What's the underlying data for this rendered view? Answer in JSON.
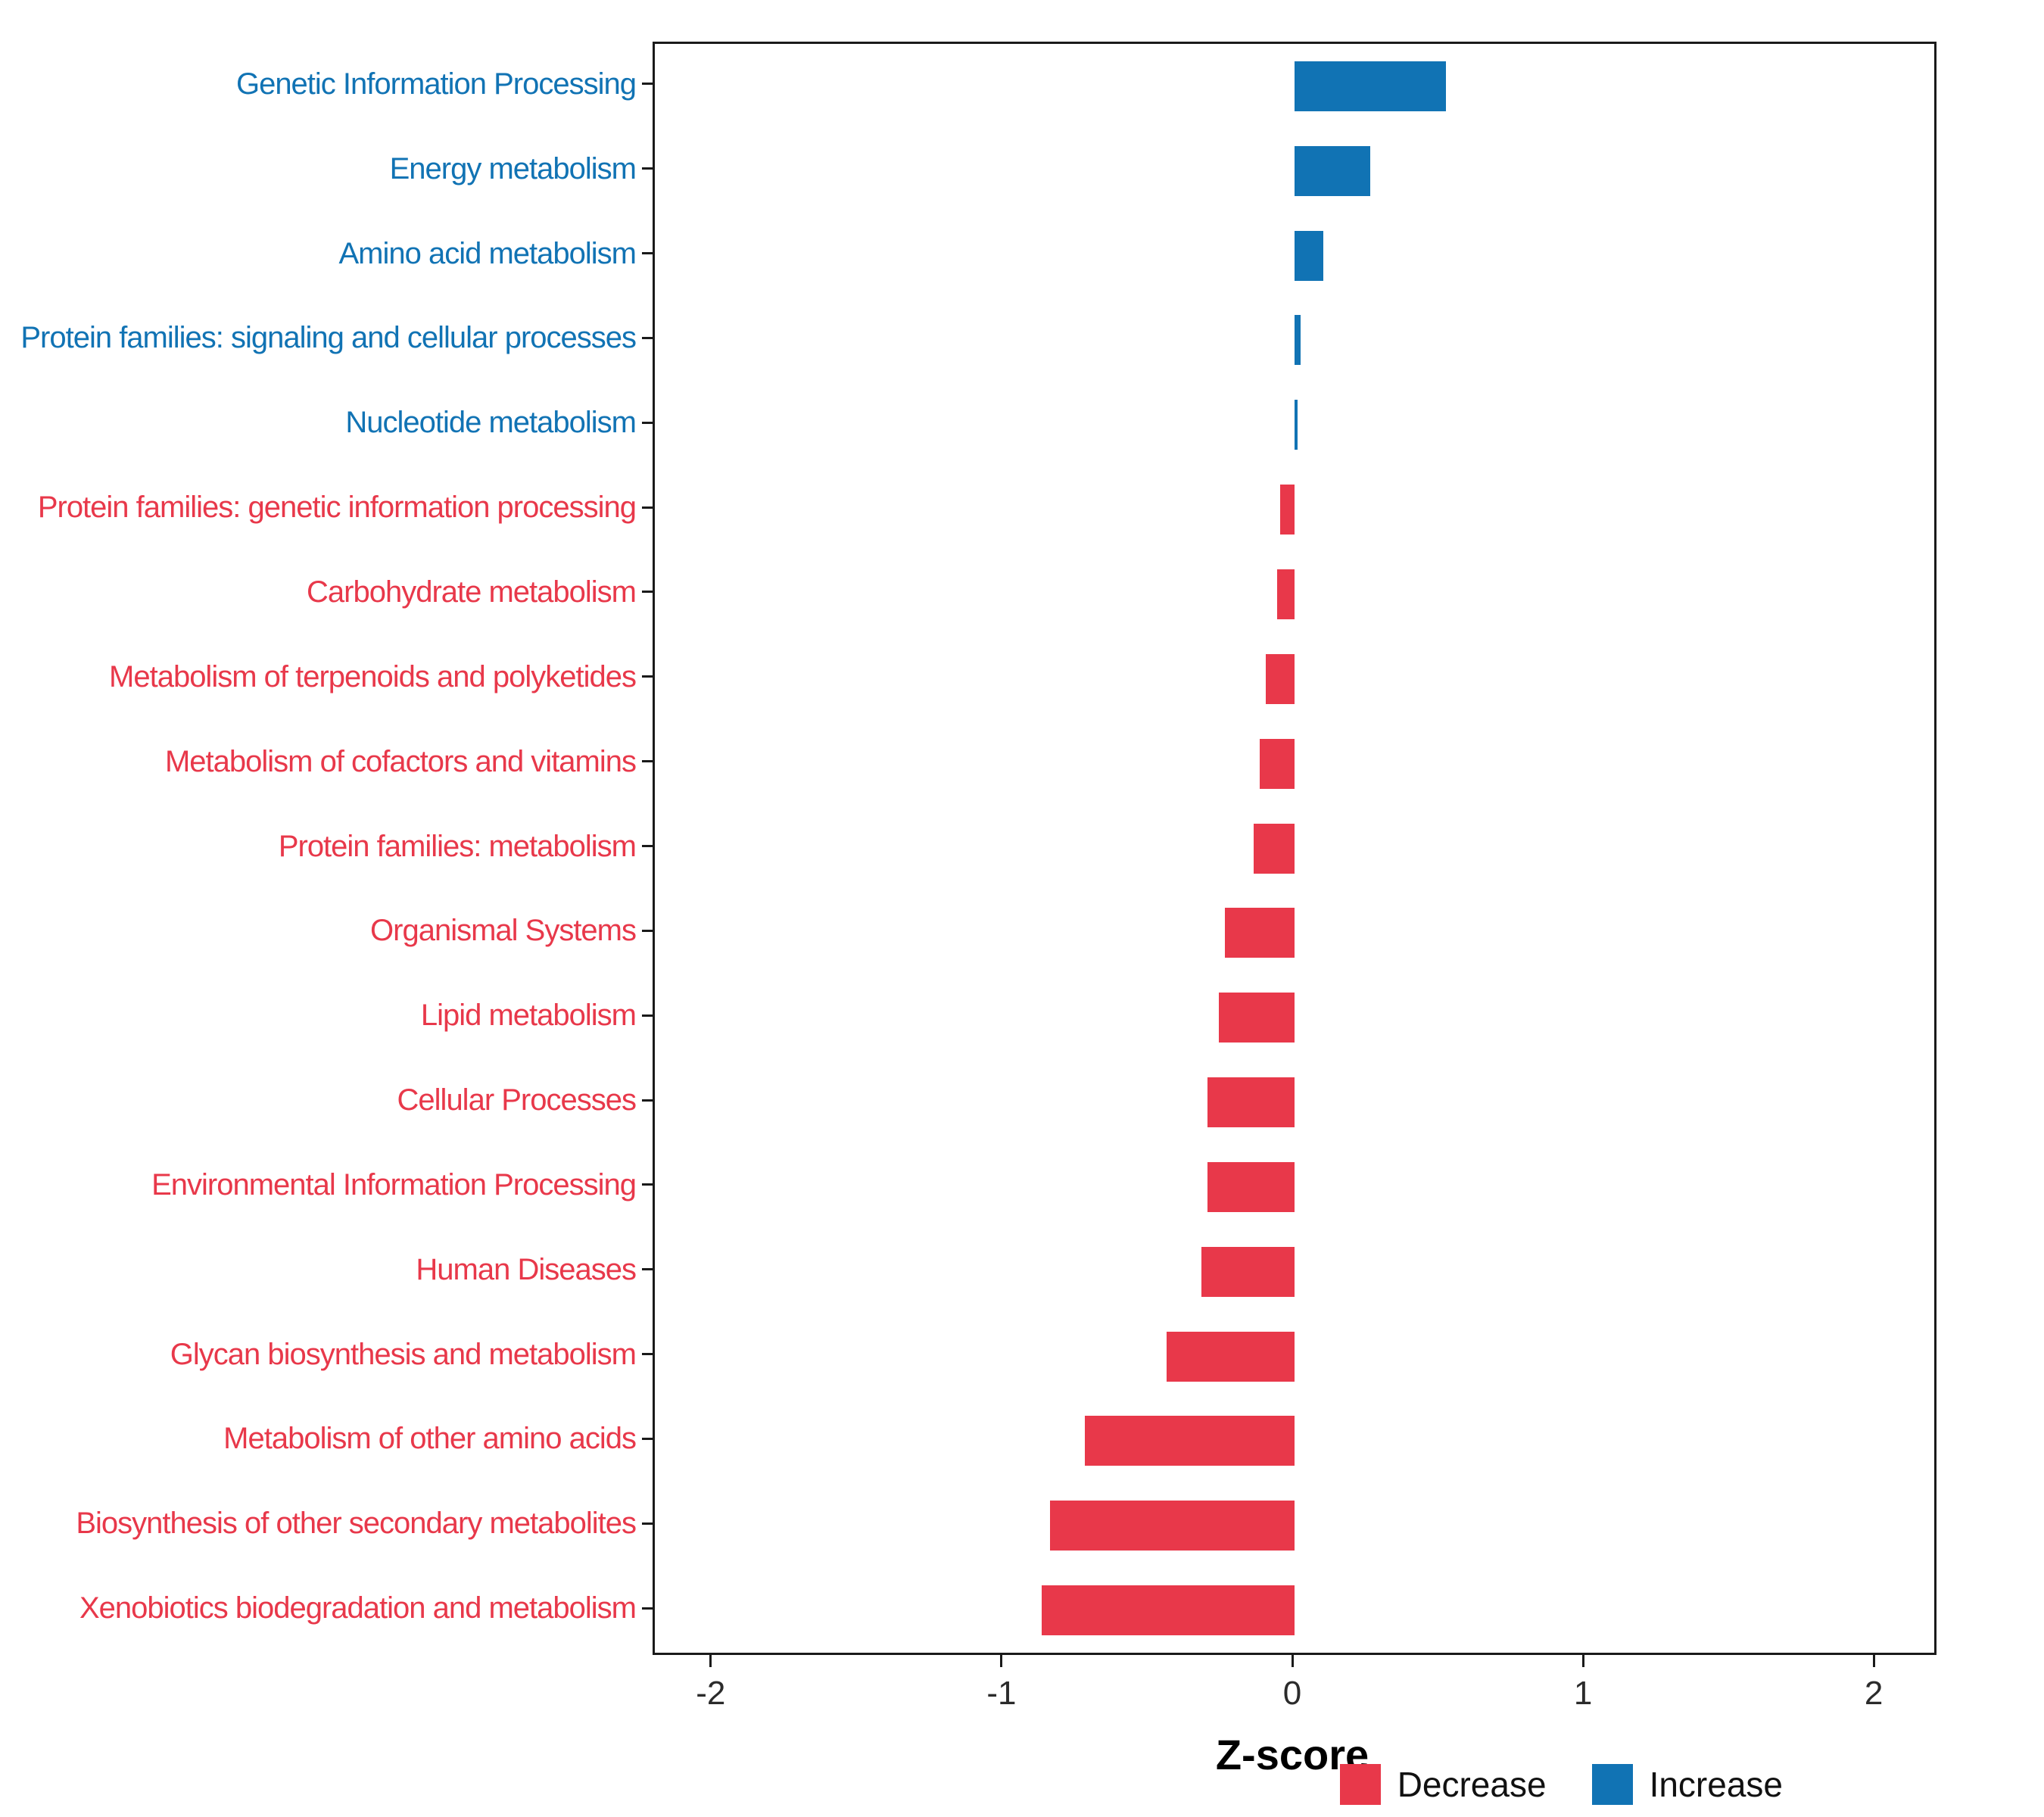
{
  "chart_data": {
    "type": "bar",
    "orientation": "horizontal",
    "title": "",
    "xlabel": "Z-score",
    "ylabel": "",
    "xlim": [
      -2,
      2
    ],
    "xticks": [
      -2,
      -1,
      0,
      1,
      2
    ],
    "grid": false,
    "colors": {
      "Decrease": "#E8384A",
      "Increase": "#1173B4"
    },
    "categories": [
      {
        "label": "Genetic Information Processing",
        "value": 0.52,
        "group": "Increase"
      },
      {
        "label": "Energy metabolism",
        "value": 0.26,
        "group": "Increase"
      },
      {
        "label": "Amino acid metabolism",
        "value": 0.1,
        "group": "Increase"
      },
      {
        "label": "Protein families: signaling and cellular processes",
        "value": 0.02,
        "group": "Increase"
      },
      {
        "label": "Nucleotide metabolism",
        "value": 0.01,
        "group": "Increase"
      },
      {
        "label": "Protein families: genetic information processing",
        "value": -0.05,
        "group": "Decrease"
      },
      {
        "label": "Carbohydrate metabolism",
        "value": -0.06,
        "group": "Decrease"
      },
      {
        "label": "Metabolism of terpenoids and polyketides",
        "value": -0.1,
        "group": "Decrease"
      },
      {
        "label": "Metabolism of cofactors and vitamins",
        "value": -0.12,
        "group": "Decrease"
      },
      {
        "label": "Protein families: metabolism",
        "value": -0.14,
        "group": "Decrease"
      },
      {
        "label": "Organismal Systems",
        "value": -0.24,
        "group": "Decrease"
      },
      {
        "label": "Lipid metabolism",
        "value": -0.26,
        "group": "Decrease"
      },
      {
        "label": "Cellular Processes",
        "value": -0.3,
        "group": "Decrease"
      },
      {
        "label": "Environmental Information Processing",
        "value": -0.3,
        "group": "Decrease"
      },
      {
        "label": "Human Diseases",
        "value": -0.32,
        "group": "Decrease"
      },
      {
        "label": "Glycan biosynthesis and metabolism",
        "value": -0.44,
        "group": "Decrease"
      },
      {
        "label": "Metabolism of other amino acids",
        "value": -0.72,
        "group": "Decrease"
      },
      {
        "label": "Biosynthesis of other secondary metabolites",
        "value": -0.84,
        "group": "Decrease"
      },
      {
        "label": "Xenobiotics biodegradation and metabolism",
        "value": -0.87,
        "group": "Decrease"
      }
    ],
    "legend": {
      "position": "bottom-right",
      "items": [
        {
          "label": "Decrease",
          "color": "#E8384A"
        },
        {
          "label": "Increase",
          "color": "#1173B4"
        }
      ]
    }
  }
}
